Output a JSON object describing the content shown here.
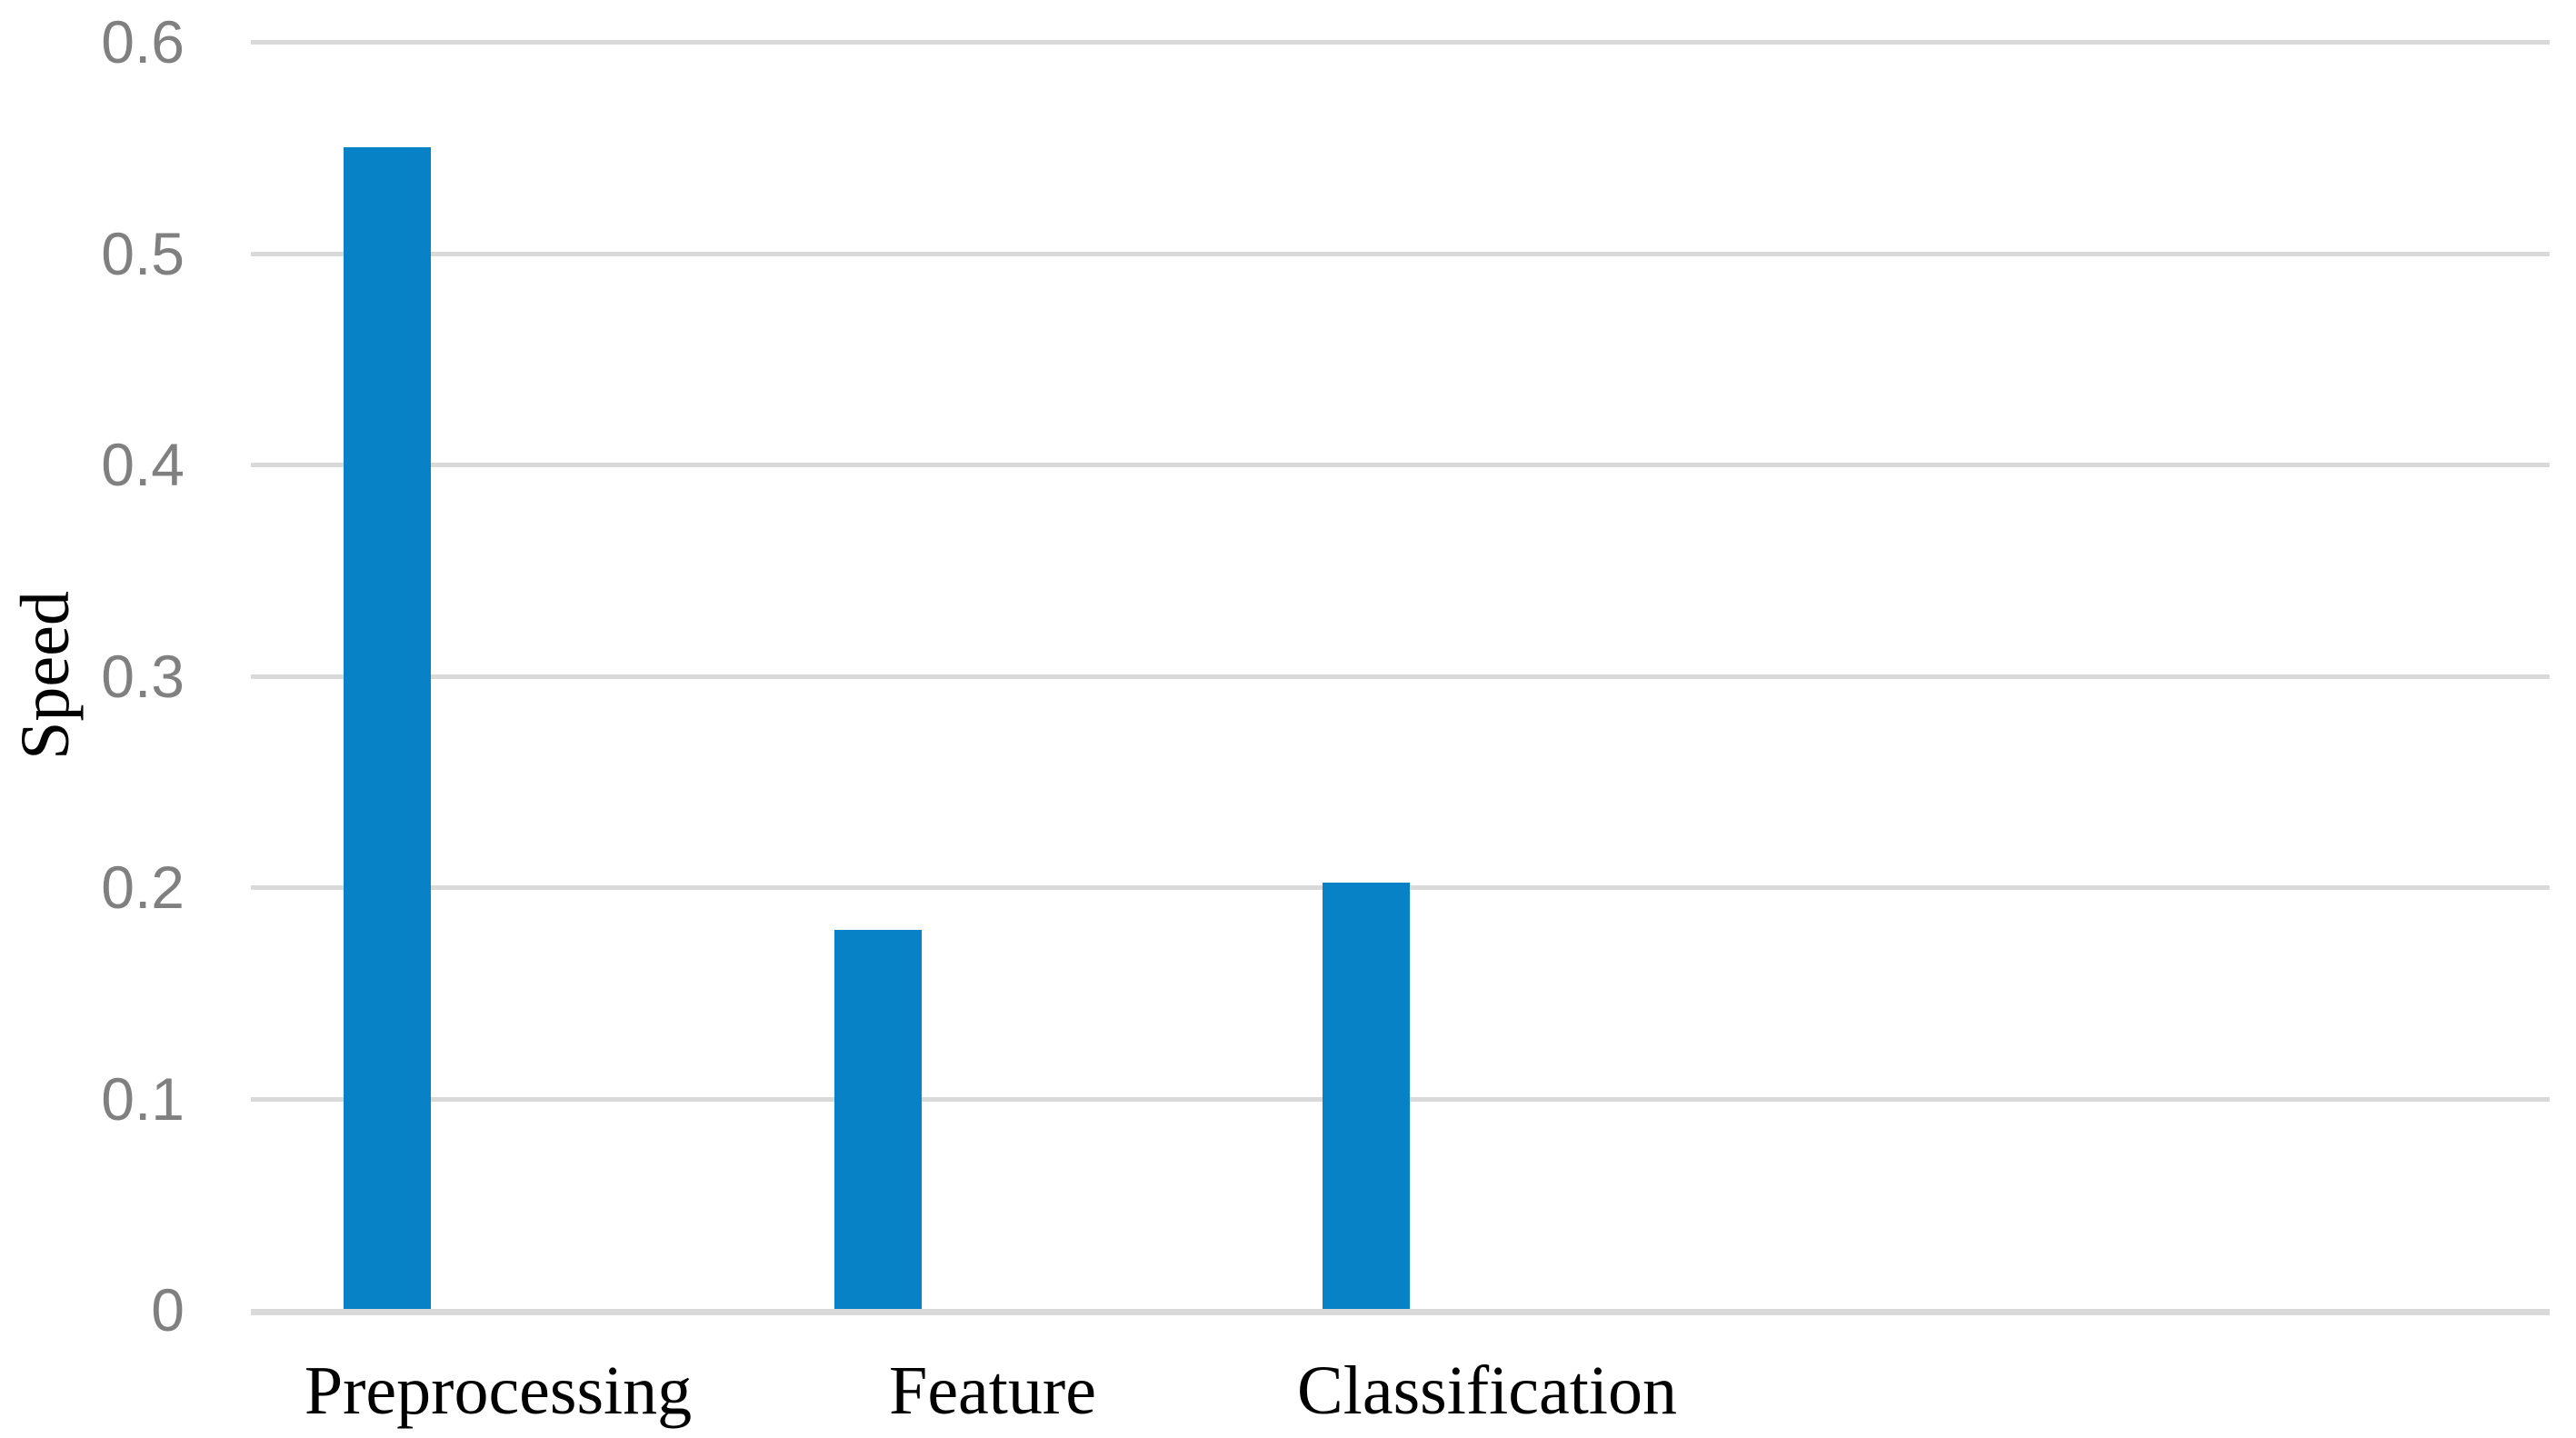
{
  "chart_data": {
    "type": "bar",
    "title": "",
    "categories": [
      "Preprocessing",
      "Feature",
      "Classification"
    ],
    "values": [
      0.55,
      0.18,
      0.202
    ],
    "series": [
      {
        "name": "Speed",
        "values": [
          0.55,
          0.18,
          0.202
        ]
      }
    ],
    "xlabel": "",
    "ylabel": "Speed",
    "ylim": [
      0,
      0.6
    ],
    "yticks": [
      0,
      0.1,
      0.2,
      0.3,
      0.4,
      0.5,
      0.6
    ],
    "ytick_labels": [
      "0",
      "0.1",
      "0.2",
      "0.3",
      "0.4",
      "0.5",
      "0.6"
    ],
    "grid": "horizontal-only",
    "legend": "none",
    "colors": {
      "bar": "#0782C6",
      "gridline": "#D9D9D9",
      "axis_line": "#D9D9D9",
      "tick_label": "#808080",
      "category_label": "#000000",
      "axis_title": "#000000",
      "background": "#FFFFFF"
    }
  }
}
